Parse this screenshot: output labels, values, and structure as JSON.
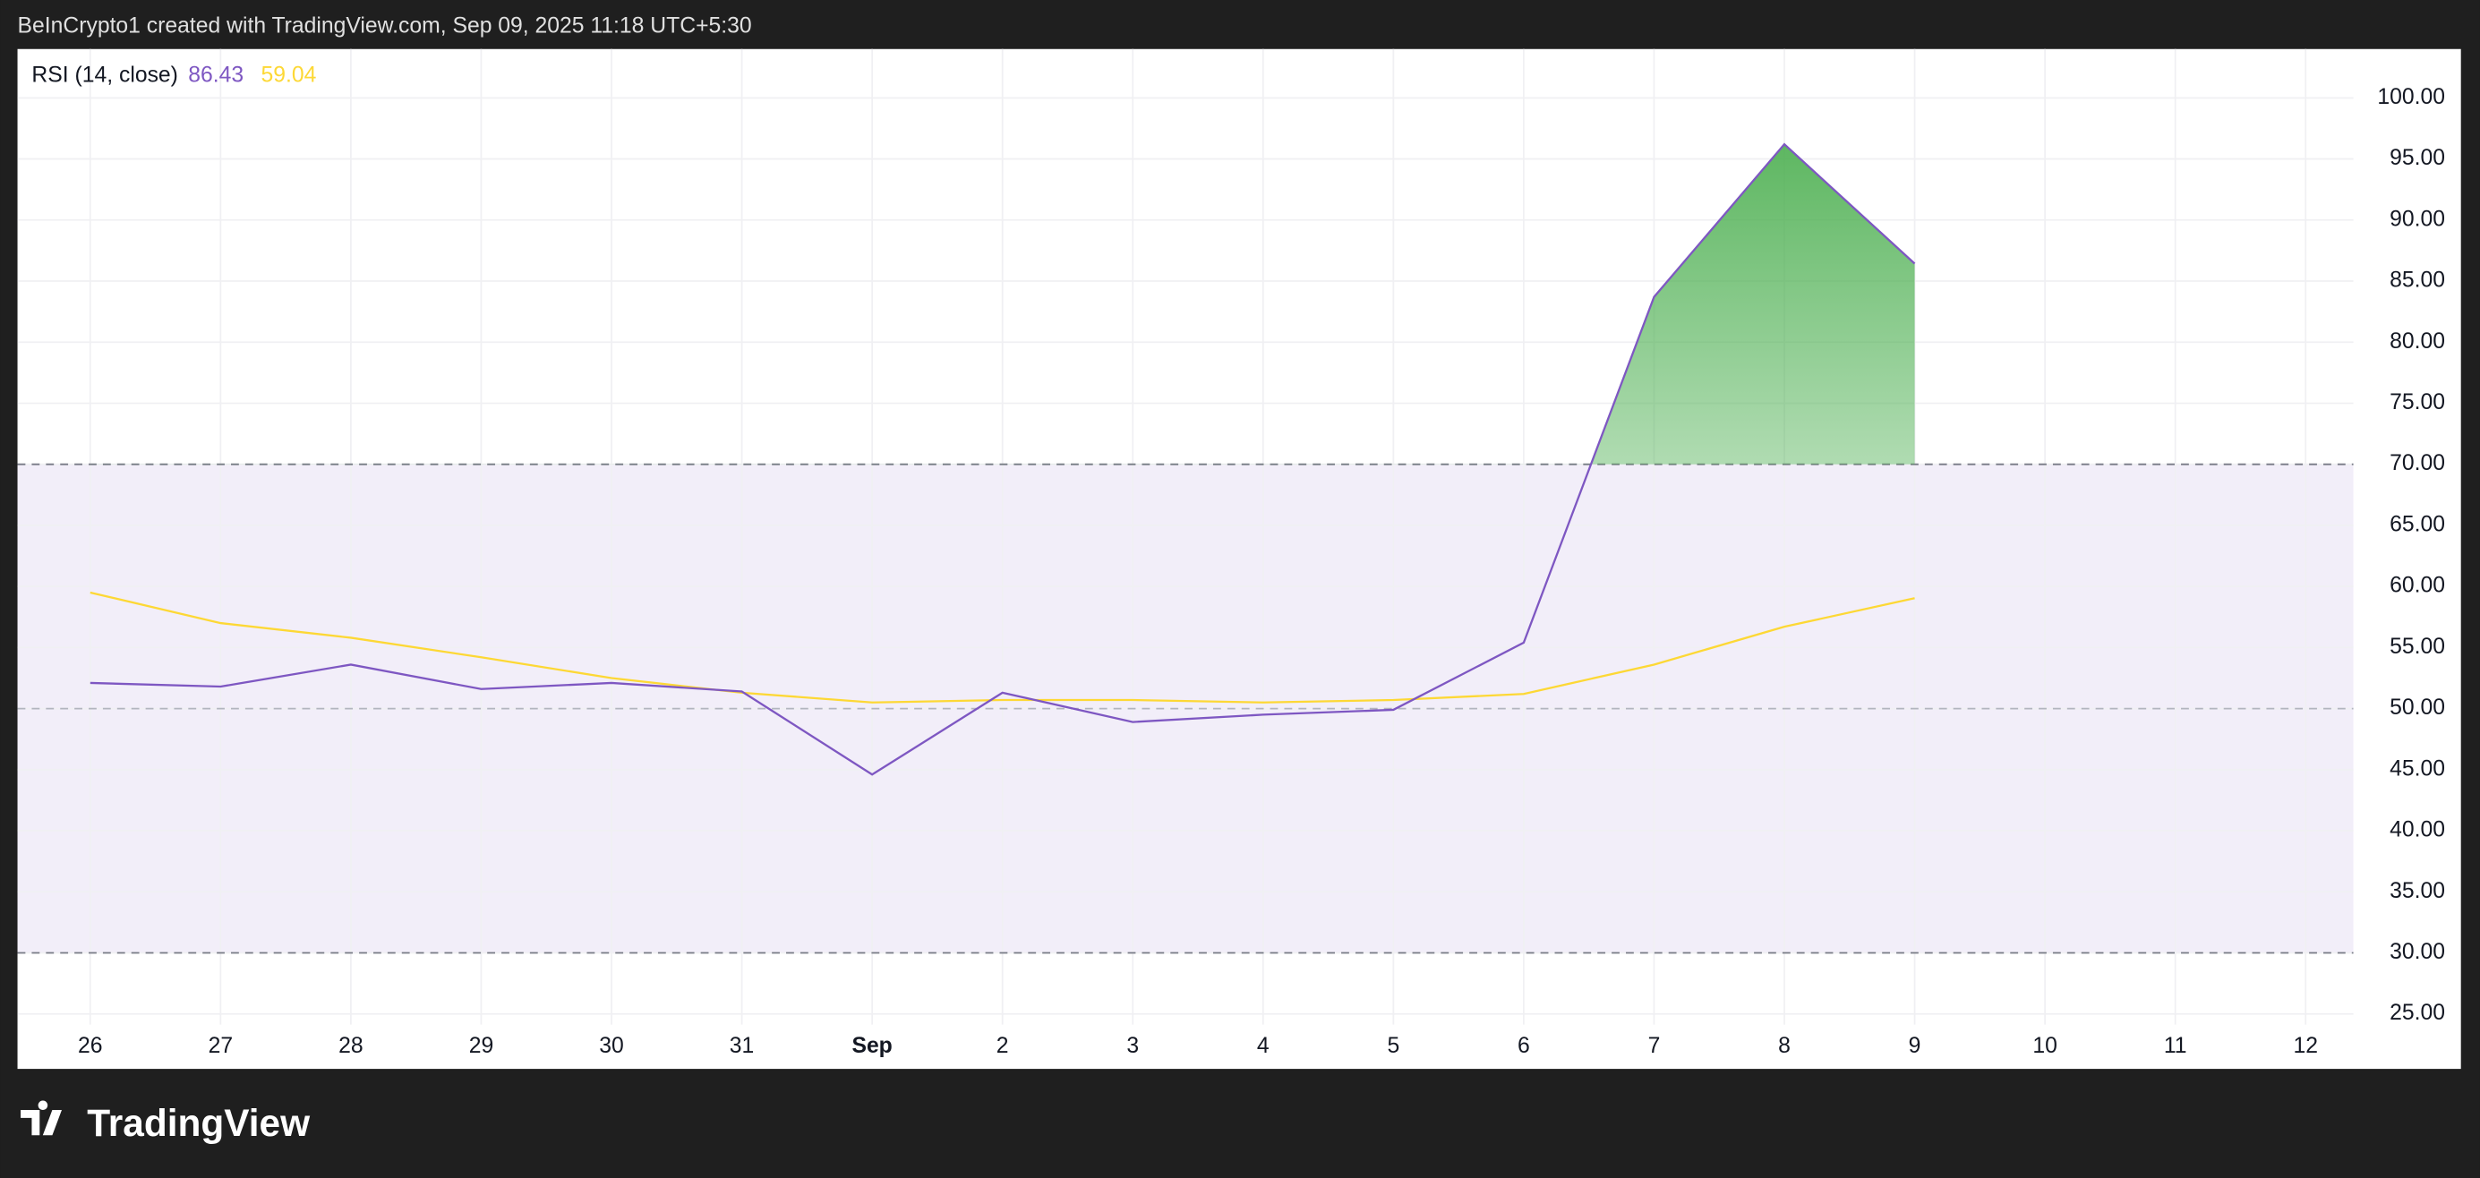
{
  "header": "BeInCrypto1 created with TradingView.com, Sep 09, 2025 11:18 UTC+5:30",
  "footer": "TradingView",
  "chart_data": {
    "type": "line",
    "legend_title": "RSI (14, close)",
    "categories": [
      "26",
      "27",
      "28",
      "29",
      "30",
      "31",
      "Sep",
      "2",
      "3",
      "4",
      "5",
      "6",
      "7",
      "8",
      "9",
      "10",
      "11",
      "12"
    ],
    "series": [
      {
        "color": "#7e57c2",
        "values": [
          52.1,
          51.8,
          53.6,
          51.6,
          52.1,
          51.4,
          44.6,
          51.3,
          48.9,
          49.5,
          49.9,
          55.4,
          83.7,
          96.2,
          86.43,
          null,
          null,
          null
        ]
      },
      {
        "color": "#fdd835",
        "values": [
          59.5,
          57.0,
          55.8,
          54.2,
          52.5,
          51.3,
          50.5,
          50.7,
          50.7,
          50.5,
          50.7,
          51.2,
          53.6,
          56.7,
          59.04,
          null,
          null,
          null
        ]
      }
    ],
    "ylim": [
      20.5,
      104
    ],
    "yticks": [
      {
        "value": 25,
        "label": "25.00"
      },
      {
        "value": 30,
        "label": "30.00"
      },
      {
        "value": 35,
        "label": "35.00"
      },
      {
        "value": 40,
        "label": "40.00"
      },
      {
        "value": 45,
        "label": "45.00"
      },
      {
        "value": 50,
        "label": "50.00"
      },
      {
        "value": 55,
        "label": "55.00"
      },
      {
        "value": 60,
        "label": "60.00"
      },
      {
        "value": 65,
        "label": "65.00"
      },
      {
        "value": 70,
        "label": "70.00"
      },
      {
        "value": 75,
        "label": "75.00"
      },
      {
        "value": 80,
        "label": "80.00"
      },
      {
        "value": 85,
        "label": "85.00"
      },
      {
        "value": 90,
        "label": "90.00"
      },
      {
        "value": 95,
        "label": "95.00"
      },
      {
        "value": 100,
        "label": "100.00"
      }
    ],
    "band": [
      30,
      70
    ],
    "midline": 50,
    "grid": true
  }
}
